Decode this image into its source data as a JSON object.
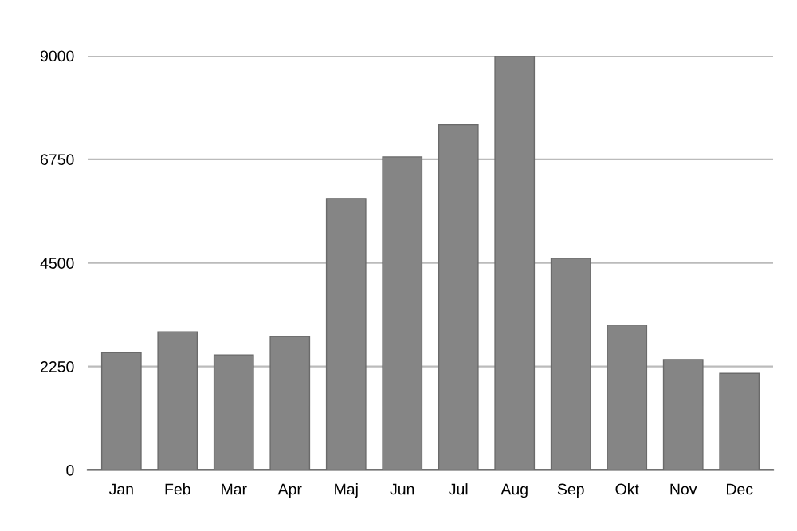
{
  "chart_data": {
    "type": "bar",
    "categories": [
      "Jan",
      "Feb",
      "Mar",
      "Apr",
      "Maj",
      "Jun",
      "Jul",
      "Aug",
      "Sep",
      "Okt",
      "Nov",
      "Dec"
    ],
    "values": [
      2550,
      3000,
      2500,
      2900,
      5900,
      6800,
      7500,
      9000,
      4600,
      3150,
      2400,
      2100
    ],
    "color": "#858585",
    "ylim": [
      0,
      9000
    ],
    "yticks": [
      0,
      2250,
      4500,
      6750,
      9000
    ],
    "grid": "y"
  }
}
